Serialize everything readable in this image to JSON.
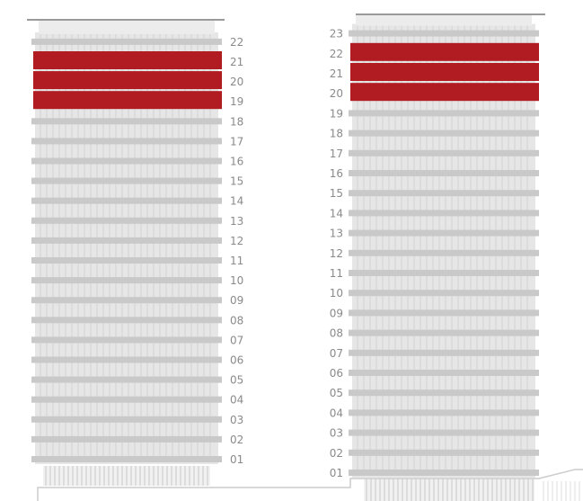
{
  "buildings": [
    {
      "id": "left-tower",
      "floors": [
        "01",
        "02",
        "03",
        "04",
        "05",
        "06",
        "07",
        "08",
        "09",
        "10",
        "11",
        "12",
        "13",
        "14",
        "15",
        "16",
        "17",
        "18",
        "19",
        "20",
        "21",
        "22"
      ],
      "highlighted": [
        "19",
        "20",
        "21"
      ],
      "label_side": "right"
    },
    {
      "id": "right-tower",
      "floors": [
        "01",
        "02",
        "03",
        "04",
        "05",
        "06",
        "07",
        "08",
        "09",
        "10",
        "11",
        "12",
        "13",
        "14",
        "15",
        "16",
        "17",
        "18",
        "19",
        "20",
        "21",
        "22",
        "23"
      ],
      "highlighted": [
        "20",
        "21",
        "22"
      ],
      "label_side": "left"
    }
  ],
  "colors": {
    "highlight": "#b01c22",
    "floor_slab": "#c9c9c9",
    "facade": "#e6e6e6",
    "mullion": "#d2d2d2",
    "label": "#8a8a8a",
    "ground": "#cccccc"
  }
}
